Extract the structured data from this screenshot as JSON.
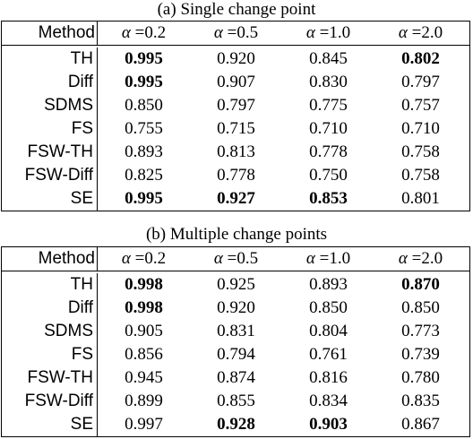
{
  "tables": [
    {
      "caption": "(a) Single change point",
      "header": [
        "Method",
        "=0.2",
        "=0.5",
        "=1.0",
        "=2.0"
      ],
      "alpha_symbol": "α",
      "rows": [
        {
          "method": "TH",
          "values": [
            "0.995",
            "0.920",
            "0.845",
            "0.802"
          ],
          "bold": [
            true,
            false,
            false,
            true
          ]
        },
        {
          "method": "Diff",
          "values": [
            "0.995",
            "0.907",
            "0.830",
            "0.797"
          ],
          "bold": [
            true,
            false,
            false,
            false
          ]
        },
        {
          "method": "SDMS",
          "values": [
            "0.850",
            "0.797",
            "0.775",
            "0.757"
          ],
          "bold": [
            false,
            false,
            false,
            false
          ]
        },
        {
          "method": "FS",
          "values": [
            "0.755",
            "0.715",
            "0.710",
            "0.710"
          ],
          "bold": [
            false,
            false,
            false,
            false
          ]
        },
        {
          "method": "FSW-TH",
          "values": [
            "0.893",
            "0.813",
            "0.778",
            "0.758"
          ],
          "bold": [
            false,
            false,
            false,
            false
          ]
        },
        {
          "method": "FSW-Diff",
          "values": [
            "0.825",
            "0.778",
            "0.750",
            "0.758"
          ],
          "bold": [
            false,
            false,
            false,
            false
          ]
        },
        {
          "method": "SE",
          "values": [
            "0.995",
            "0.927",
            "0.853",
            "0.801"
          ],
          "bold": [
            true,
            true,
            true,
            false
          ]
        }
      ]
    },
    {
      "caption": "(b) Multiple change points",
      "header": [
        "Method",
        "=0.2",
        "=0.5",
        "=1.0",
        "=2.0"
      ],
      "alpha_symbol": "α",
      "rows": [
        {
          "method": "TH",
          "values": [
            "0.998",
            "0.925",
            "0.893",
            "0.870"
          ],
          "bold": [
            true,
            false,
            false,
            true
          ]
        },
        {
          "method": "Diff",
          "values": [
            "0.998",
            "0.920",
            "0.850",
            "0.850"
          ],
          "bold": [
            true,
            false,
            false,
            false
          ]
        },
        {
          "method": "SDMS",
          "values": [
            "0.905",
            "0.831",
            "0.804",
            "0.773"
          ],
          "bold": [
            false,
            false,
            false,
            false
          ]
        },
        {
          "method": "FS",
          "values": [
            "0.856",
            "0.794",
            "0.761",
            "0.739"
          ],
          "bold": [
            false,
            false,
            false,
            false
          ]
        },
        {
          "method": "FSW-TH",
          "values": [
            "0.945",
            "0.874",
            "0.816",
            "0.780"
          ],
          "bold": [
            false,
            false,
            false,
            false
          ]
        },
        {
          "method": "FSW-Diff",
          "values": [
            "0.899",
            "0.855",
            "0.834",
            "0.835"
          ],
          "bold": [
            false,
            false,
            false,
            false
          ]
        },
        {
          "method": "SE",
          "values": [
            "0.997",
            "0.928",
            "0.903",
            "0.867"
          ],
          "bold": [
            false,
            true,
            true,
            false
          ]
        }
      ]
    }
  ]
}
